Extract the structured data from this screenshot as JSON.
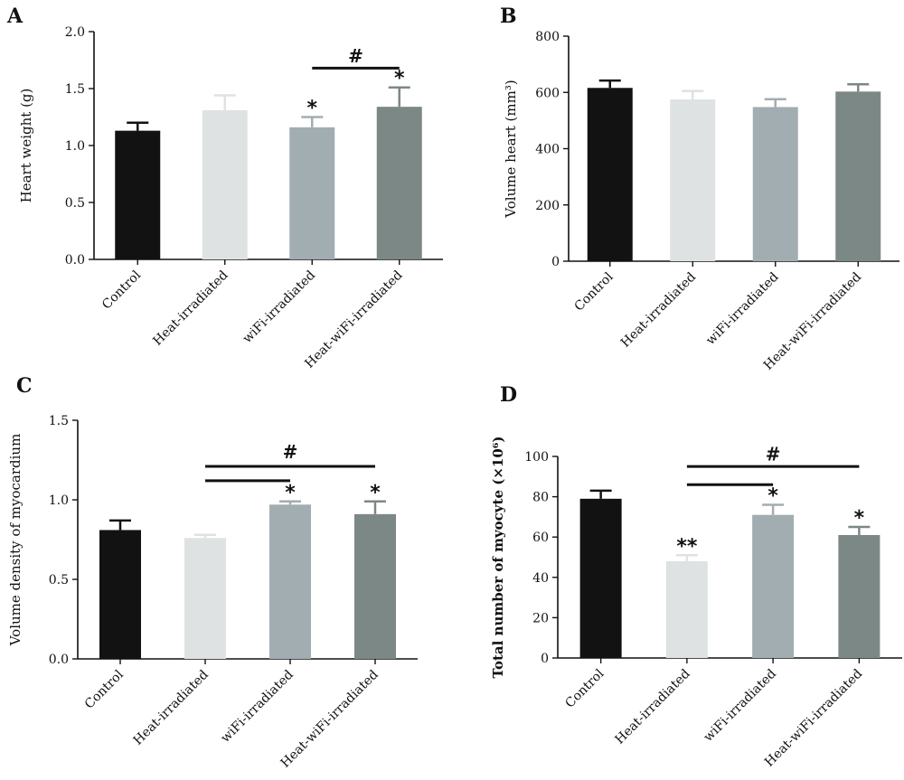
{
  "chart_data": [
    {
      "panel_label": "A",
      "type": "bar",
      "categories": [
        "Control",
        "Heat-irradiated",
        "wiFi-irradiated",
        "Heat-wiFi-irradiated"
      ],
      "values": [
        1.13,
        1.31,
        1.16,
        1.34
      ],
      "errors": [
        0.07,
        0.13,
        0.09,
        0.17
      ],
      "colors": [
        "#121212",
        "#dfe2e2",
        "#a2adb2",
        "#7c8885"
      ],
      "ylabel": "Heart weight (g)",
      "xlabel": "",
      "ylim": [
        0,
        2.0
      ],
      "yticks": [
        "0.0",
        "0.5",
        "1.0",
        "1.5",
        "2.0"
      ],
      "ylabel_bold": false,
      "stars": [
        "",
        "",
        "*",
        "*"
      ],
      "sig_lines": [
        {
          "from": 2,
          "to": 3,
          "y": 1.68
        }
      ],
      "sig_symbol": "#",
      "sig_symbol_y": 1.73
    },
    {
      "panel_label": "B",
      "type": "bar",
      "categories": [
        "Control",
        "Heat-irradiated",
        "wiFi-irradiated",
        "Heat-wiFi-irradiated"
      ],
      "values": [
        616,
        575,
        548,
        603
      ],
      "errors": [
        26,
        30,
        28,
        26
      ],
      "colors": [
        "#121212",
        "#dfe2e2",
        "#a2adb2",
        "#7c8885"
      ],
      "ylabel": "Volume heart (mm³)",
      "xlabel": "",
      "ylim": [
        0,
        800
      ],
      "yticks": [
        "0",
        "200",
        "400",
        "600",
        "800"
      ],
      "ylabel_bold": false,
      "stars": [
        "",
        "",
        "",
        ""
      ],
      "sig_lines": [],
      "sig_symbol": "",
      "sig_symbol_y": 0
    },
    {
      "panel_label": "C",
      "type": "bar",
      "categories": [
        "Control",
        "Heat-irradiated",
        "wiFi-irradiated",
        "Heat-wiFi-irradiated"
      ],
      "values": [
        0.81,
        0.76,
        0.97,
        0.91
      ],
      "errors": [
        0.06,
        0.02,
        0.02,
        0.08
      ],
      "colors": [
        "#121212",
        "#dfe2e2",
        "#a2adb2",
        "#7c8885"
      ],
      "ylabel": "Volume density of myocardium",
      "xlabel": "",
      "ylim": [
        0,
        1.5
      ],
      "yticks": [
        "0.0",
        "0.5",
        "1.0",
        "1.5"
      ],
      "ylabel_bold": false,
      "stars": [
        "",
        "",
        "*",
        "*"
      ],
      "sig_lines": [
        {
          "from": 1,
          "to": 2,
          "y": 1.12
        },
        {
          "from": 1,
          "to": 3,
          "y": 1.21
        }
      ],
      "sig_symbol": "#",
      "sig_symbol_y": 1.26
    },
    {
      "panel_label": "D",
      "type": "bar",
      "categories": [
        "Control",
        "Heat-irradiated",
        "wiFi-irradiated",
        "Heat-wiFi-irradiated"
      ],
      "values": [
        79,
        48,
        71,
        61
      ],
      "errors": [
        4,
        3,
        5,
        4
      ],
      "colors": [
        "#121212",
        "#dfe2e2",
        "#a2adb2",
        "#7c8885"
      ],
      "ylabel": "Total number of myocyte (×10⁶)",
      "xlabel": "",
      "ylim": [
        0,
        100
      ],
      "yticks": [
        "0",
        "20",
        "40",
        "60",
        "80",
        "100"
      ],
      "ylabel_bold": true,
      "stars": [
        "",
        "**",
        "*",
        "*"
      ],
      "sig_lines": [
        {
          "from": 1,
          "to": 2,
          "y": 86
        },
        {
          "from": 1,
          "to": 3,
          "y": 95
        }
      ],
      "sig_symbol": "#",
      "sig_symbol_y": 98
    }
  ]
}
